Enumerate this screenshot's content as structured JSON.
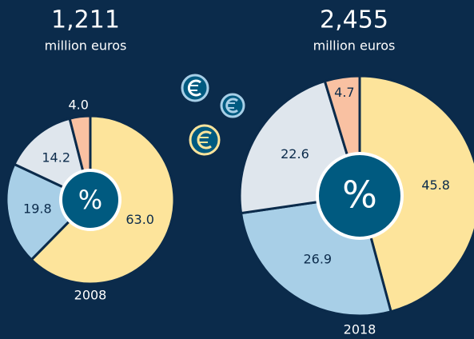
{
  "chart_data": [
    {
      "type": "pie",
      "title": "1,211",
      "subtitle": "million euros",
      "label": "2008",
      "center_label": "%",
      "values": [
        63.0,
        19.8,
        14.2,
        4.0
      ],
      "value_labels": [
        "63.0",
        "19.8",
        "14.2",
        "4.0"
      ],
      "colors": [
        "#fde49b",
        "#a8cfe7",
        "#dfe6ed",
        "#f9c1a2"
      ]
    },
    {
      "type": "pie",
      "title": "2,455",
      "subtitle": "million euros",
      "label": "2018",
      "center_label": "%",
      "values": [
        45.8,
        26.9,
        22.6,
        4.7
      ],
      "colors": [
        "#fde49b",
        "#a8cfe7",
        "#dfe6ed",
        "#f9c1a2"
      ]
    }
  ]
}
